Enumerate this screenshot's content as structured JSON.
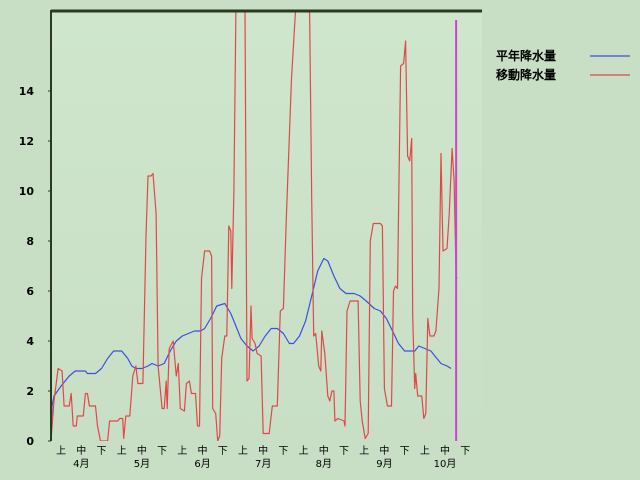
{
  "chart_data": {
    "type": "line",
    "title": "",
    "xlabel": "",
    "ylabel": "",
    "ylim": [
      0,
      17.2
    ],
    "yticks": [
      "0",
      "2",
      "4",
      "6",
      "8",
      "10",
      "12",
      "14"
    ],
    "ytick_values": [
      0,
      2,
      4,
      6,
      8,
      10,
      12,
      14
    ],
    "x_decade_labels": [
      "上",
      "中",
      "下",
      "上",
      "中",
      "下",
      "上",
      "中",
      "下",
      "上",
      "中",
      "下",
      "上",
      "中",
      "下",
      "上",
      "中",
      "下",
      "上",
      "中",
      "下"
    ],
    "x_month_labels": [
      "4月",
      "5月",
      "6月",
      "7月",
      "8月",
      "9月",
      "10月"
    ],
    "x_month_index": [
      1,
      4,
      7,
      10,
      13,
      16,
      19
    ],
    "x_range": [
      0,
      21.33
    ],
    "grid": false,
    "legend_position": "top-right",
    "series": [
      {
        "name": "平年降水量",
        "color": "#3b4fe0",
        "points": [
          [
            0.0,
            0.0
          ],
          [
            0.05,
            1.4
          ],
          [
            0.15,
            1.8
          ],
          [
            0.5,
            2.2
          ],
          [
            0.9,
            2.6
          ],
          [
            1.2,
            2.8
          ],
          [
            1.7,
            2.8
          ],
          [
            1.8,
            2.7
          ],
          [
            2.2,
            2.7
          ],
          [
            2.5,
            2.9
          ],
          [
            2.8,
            3.3
          ],
          [
            3.1,
            3.6
          ],
          [
            3.5,
            3.6
          ],
          [
            3.8,
            3.3
          ],
          [
            4.0,
            3.0
          ],
          [
            4.2,
            2.9
          ],
          [
            4.5,
            2.9
          ],
          [
            4.8,
            3.0
          ],
          [
            5.0,
            3.1
          ],
          [
            5.3,
            3.0
          ],
          [
            5.6,
            3.1
          ],
          [
            5.9,
            3.6
          ],
          [
            6.2,
            4.0
          ],
          [
            6.5,
            4.2
          ],
          [
            6.8,
            4.3
          ],
          [
            7.1,
            4.4
          ],
          [
            7.4,
            4.4
          ],
          [
            7.6,
            4.5
          ],
          [
            7.9,
            4.9
          ],
          [
            8.2,
            5.4
          ],
          [
            8.6,
            5.5
          ],
          [
            8.9,
            5.1
          ],
          [
            9.1,
            4.7
          ],
          [
            9.4,
            4.1
          ],
          [
            9.7,
            3.8
          ],
          [
            10.0,
            3.6
          ],
          [
            10.3,
            3.8
          ],
          [
            10.6,
            4.2
          ],
          [
            10.9,
            4.5
          ],
          [
            11.2,
            4.5
          ],
          [
            11.5,
            4.3
          ],
          [
            11.8,
            3.9
          ],
          [
            12.0,
            3.9
          ],
          [
            12.3,
            4.2
          ],
          [
            12.6,
            4.8
          ],
          [
            12.9,
            5.8
          ],
          [
            13.2,
            6.8
          ],
          [
            13.5,
            7.3
          ],
          [
            13.7,
            7.2
          ],
          [
            14.0,
            6.6
          ],
          [
            14.3,
            6.1
          ],
          [
            14.6,
            5.9
          ],
          [
            15.0,
            5.9
          ],
          [
            15.3,
            5.8
          ],
          [
            15.6,
            5.6
          ],
          [
            16.0,
            5.3
          ],
          [
            16.3,
            5.2
          ],
          [
            16.6,
            4.9
          ],
          [
            16.9,
            4.4
          ],
          [
            17.2,
            3.9
          ],
          [
            17.5,
            3.6
          ],
          [
            17.8,
            3.6
          ],
          [
            18.0,
            3.6
          ],
          [
            18.2,
            3.8
          ],
          [
            18.5,
            3.7
          ],
          [
            18.8,
            3.6
          ],
          [
            19.0,
            3.4
          ],
          [
            19.3,
            3.1
          ],
          [
            19.6,
            3.0
          ],
          [
            19.8,
            2.9
          ]
        ]
      },
      {
        "name": "移動降水量",
        "color": "#e04848",
        "points": [
          [
            0.0,
            0.0
          ],
          [
            0.15,
            1.6
          ],
          [
            0.35,
            2.9
          ],
          [
            0.55,
            2.8
          ],
          [
            0.65,
            1.4
          ],
          [
            0.9,
            1.4
          ],
          [
            1.0,
            1.9
          ],
          [
            1.1,
            0.6
          ],
          [
            1.25,
            0.6
          ],
          [
            1.3,
            1.0
          ],
          [
            1.6,
            1.0
          ],
          [
            1.7,
            1.9
          ],
          [
            1.8,
            1.9
          ],
          [
            1.9,
            1.4
          ],
          [
            2.2,
            1.4
          ],
          [
            2.3,
            0.6
          ],
          [
            2.45,
            0.0
          ],
          [
            2.8,
            0.0
          ],
          [
            2.9,
            0.8
          ],
          [
            3.3,
            0.8
          ],
          [
            3.4,
            0.9
          ],
          [
            3.55,
            0.9
          ],
          [
            3.6,
            0.1
          ],
          [
            3.7,
            1.0
          ],
          [
            3.9,
            1.0
          ],
          [
            4.05,
            2.6
          ],
          [
            4.2,
            3.0
          ],
          [
            4.3,
            2.3
          ],
          [
            4.55,
            2.3
          ],
          [
            4.7,
            8.2
          ],
          [
            4.8,
            10.6
          ],
          [
            4.95,
            10.6
          ],
          [
            5.05,
            10.7
          ],
          [
            5.2,
            9.1
          ],
          [
            5.3,
            3.0
          ],
          [
            5.5,
            1.3
          ],
          [
            5.6,
            1.3
          ],
          [
            5.7,
            2.4
          ],
          [
            5.75,
            1.3
          ],
          [
            5.85,
            3.7
          ],
          [
            6.05,
            4.0
          ],
          [
            6.2,
            2.6
          ],
          [
            6.3,
            3.1
          ],
          [
            6.4,
            1.3
          ],
          [
            6.6,
            1.2
          ],
          [
            6.7,
            2.3
          ],
          [
            6.85,
            2.4
          ],
          [
            6.95,
            1.9
          ],
          [
            7.15,
            1.9
          ],
          [
            7.25,
            0.6
          ],
          [
            7.35,
            0.6
          ],
          [
            7.45,
            6.5
          ],
          [
            7.6,
            7.6
          ],
          [
            7.85,
            7.6
          ],
          [
            7.95,
            7.4
          ],
          [
            8.0,
            1.3
          ],
          [
            8.15,
            1.1
          ],
          [
            8.25,
            0.0
          ],
          [
            8.35,
            0.2
          ],
          [
            8.45,
            3.3
          ],
          [
            8.6,
            4.2
          ],
          [
            8.7,
            4.2
          ],
          [
            8.8,
            8.6
          ],
          [
            8.9,
            8.4
          ],
          [
            8.95,
            6.1
          ],
          [
            9.05,
            10.0
          ],
          [
            9.15,
            17.2
          ],
          [
            9.6,
            17.2
          ],
          [
            9.7,
            2.4
          ],
          [
            9.8,
            2.5
          ],
          [
            9.9,
            5.4
          ],
          [
            9.95,
            4.1
          ],
          [
            10.1,
            3.9
          ],
          [
            10.2,
            3.5
          ],
          [
            10.4,
            3.4
          ],
          [
            10.5,
            0.3
          ],
          [
            10.8,
            0.3
          ],
          [
            10.95,
            1.4
          ],
          [
            11.2,
            1.4
          ],
          [
            11.35,
            5.2
          ],
          [
            11.5,
            5.3
          ],
          [
            11.65,
            9.0
          ],
          [
            11.9,
            14.5
          ],
          [
            12.1,
            17.2
          ],
          [
            12.8,
            17.2
          ],
          [
            12.9,
            9.7
          ],
          [
            13.0,
            4.2
          ],
          [
            13.1,
            4.3
          ],
          [
            13.25,
            3.0
          ],
          [
            13.35,
            2.8
          ],
          [
            13.4,
            4.4
          ],
          [
            13.55,
            3.5
          ],
          [
            13.7,
            1.8
          ],
          [
            13.8,
            1.6
          ],
          [
            13.9,
            2.0
          ],
          [
            14.0,
            2.0
          ],
          [
            14.05,
            0.8
          ],
          [
            14.2,
            0.9
          ],
          [
            14.5,
            0.8
          ],
          [
            14.55,
            0.6
          ],
          [
            14.65,
            5.2
          ],
          [
            14.8,
            5.6
          ],
          [
            15.2,
            5.6
          ],
          [
            15.3,
            1.6
          ],
          [
            15.4,
            0.8
          ],
          [
            15.55,
            0.1
          ],
          [
            15.7,
            0.3
          ],
          [
            15.8,
            8.0
          ],
          [
            15.95,
            8.7
          ],
          [
            16.3,
            8.7
          ],
          [
            16.4,
            8.6
          ],
          [
            16.5,
            2.1
          ],
          [
            16.65,
            1.4
          ],
          [
            16.85,
            1.4
          ],
          [
            16.95,
            6.0
          ],
          [
            17.05,
            6.2
          ],
          [
            17.15,
            6.1
          ],
          [
            17.2,
            9.0
          ],
          [
            17.3,
            15.0
          ],
          [
            17.45,
            15.1
          ],
          [
            17.55,
            16.0
          ],
          [
            17.65,
            11.4
          ],
          [
            17.75,
            11.2
          ],
          [
            17.85,
            12.1
          ],
          [
            17.9,
            5.0
          ],
          [
            18.0,
            2.1
          ],
          [
            18.05,
            2.7
          ],
          [
            18.15,
            1.8
          ],
          [
            18.35,
            1.8
          ],
          [
            18.45,
            0.9
          ],
          [
            18.55,
            1.1
          ],
          [
            18.65,
            4.9
          ],
          [
            18.75,
            4.2
          ],
          [
            18.95,
            4.2
          ],
          [
            19.05,
            4.4
          ],
          [
            19.2,
            6.1
          ],
          [
            19.3,
            11.5
          ],
          [
            19.4,
            7.6
          ],
          [
            19.6,
            7.7
          ],
          [
            19.7,
            9.0
          ],
          [
            19.85,
            11.7
          ],
          [
            19.95,
            10.4
          ],
          [
            20.05,
            6.6
          ],
          [
            20.1,
            6.5
          ]
        ]
      }
    ],
    "markers": [
      {
        "color": "#cc44cc",
        "x": 20.05
      }
    ]
  }
}
